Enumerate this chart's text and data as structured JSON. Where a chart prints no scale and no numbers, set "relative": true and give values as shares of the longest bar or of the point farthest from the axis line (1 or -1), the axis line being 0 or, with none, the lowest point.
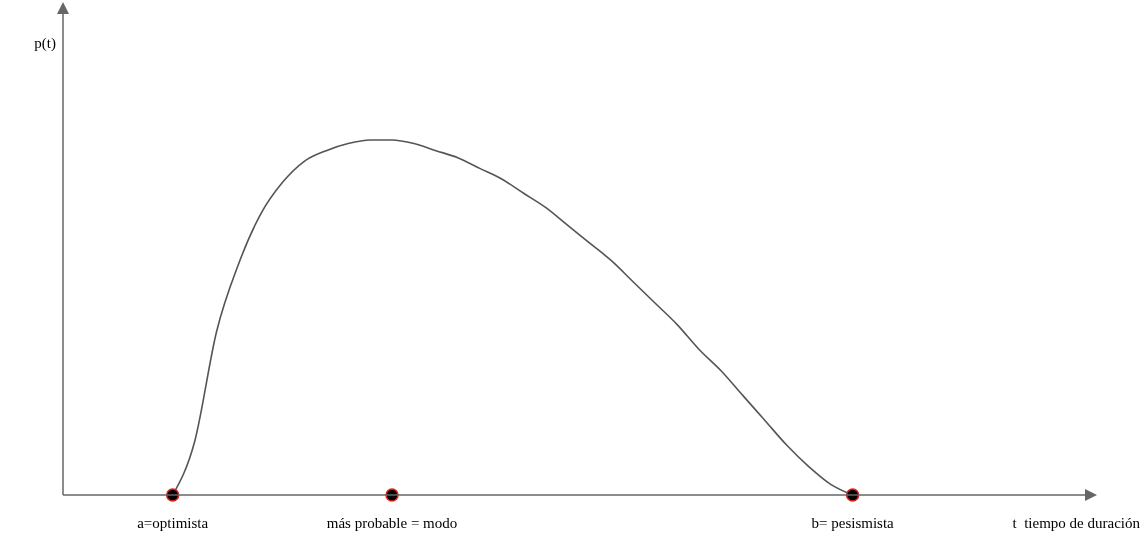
{
  "chart_data": {
    "type": "line",
    "relative": true,
    "xlabel": "t  tiempo de duración",
    "annotations": [
      "p(t)"
    ],
    "categories": [
      null,
      null,
      null,
      null,
      null,
      "a=optimista",
      null,
      null,
      null,
      null,
      null,
      null,
      null,
      null,
      null,
      "más probable = modo",
      null,
      null,
      null,
      null,
      null,
      null,
      null,
      null,
      null,
      null,
      null,
      null,
      null,
      null,
      null,
      null,
      null,
      null,
      null,
      null,
      "b= pesismista",
      null,
      null,
      null,
      null,
      null,
      null,
      null,
      null,
      null,
      null
    ],
    "series": [
      {
        "color": "#555555",
        "line_style": "solid",
        "marker": "none",
        "values": [
          null,
          null,
          null,
          null,
          null,
          0,
          0.15,
          0.46,
          0.65,
          0.79,
          0.88,
          0.94,
          0.97,
          0.99,
          1,
          1,
          0.99,
          0.97,
          0.95,
          0.92,
          0.89,
          0.85,
          0.81,
          0.76,
          0.71,
          0.66,
          0.6,
          0.54,
          0.48,
          0.41,
          0.35,
          0.28,
          0.21,
          0.14,
          0.08,
          0.03,
          0,
          null,
          null,
          null,
          null,
          null,
          null,
          null,
          null,
          null,
          null
        ]
      },
      {
        "type": "scatter",
        "color": "#000000",
        "marker": "circle",
        "values": [
          null,
          null,
          null,
          null,
          null,
          0,
          null,
          null,
          null,
          null,
          null,
          null,
          null,
          null,
          null,
          0,
          null,
          null,
          null,
          null,
          null,
          null,
          null,
          null,
          null,
          null,
          null,
          null,
          null,
          null,
          null,
          null,
          null,
          null,
          null,
          null,
          0,
          null,
          null,
          null,
          null,
          null,
          null,
          null,
          null,
          null,
          null
        ]
      }
    ]
  }
}
